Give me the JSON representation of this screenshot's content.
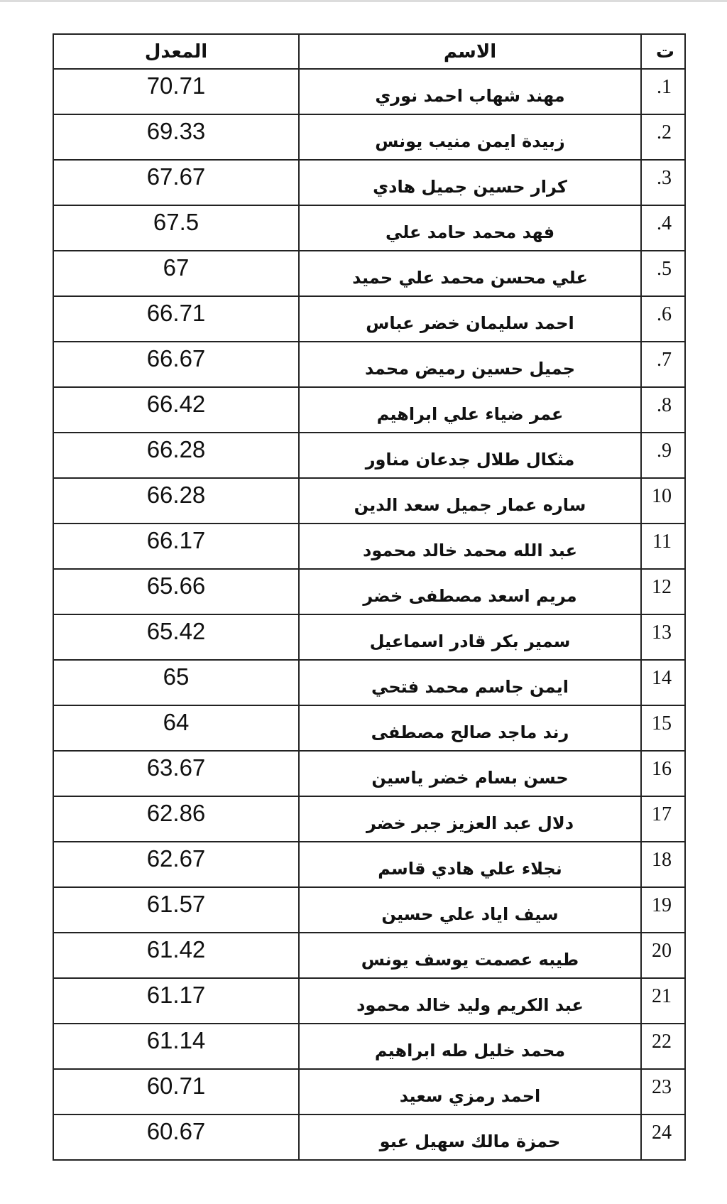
{
  "table": {
    "headers": {
      "score": "المعدل",
      "name": "الاسم",
      "index": "ت"
    },
    "rows": [
      {
        "index": "1.",
        "name": "مهند شهاب احمد نوري",
        "score": "70.71"
      },
      {
        "index": "2.",
        "name": "زبيدة ايمن منيب يونس",
        "score": "69.33"
      },
      {
        "index": "3.",
        "name": "كرار حسين جميل هادي",
        "score": "67.67"
      },
      {
        "index": "4.",
        "name": "فهد محمد حامد علي",
        "score": "67.5"
      },
      {
        "index": "5.",
        "name": "علي محسن محمد علي حميد",
        "score": "67"
      },
      {
        "index": "6.",
        "name": "احمد سليمان خضر عباس",
        "score": "66.71"
      },
      {
        "index": "7.",
        "name": "جميل حسين رميض محمد",
        "score": "66.67"
      },
      {
        "index": "8.",
        "name": "عمر ضياء علي ابراهيم",
        "score": "66.42"
      },
      {
        "index": "9.",
        "name": "مثكال طلال جدعان مناور",
        "score": "66.28"
      },
      {
        "index": "10",
        "name": "ساره عمار جميل سعد الدين",
        "score": "66.28"
      },
      {
        "index": "11",
        "name": "عبد الله محمد خالد محمود",
        "score": "66.17"
      },
      {
        "index": "12",
        "name": "مريم اسعد مصطفى خضر",
        "score": "65.66"
      },
      {
        "index": "13",
        "name": "سمير بكر قادر اسماعيل",
        "score": "65.42"
      },
      {
        "index": "14",
        "name": "ايمن جاسم محمد فتحي",
        "score": "65"
      },
      {
        "index": "15",
        "name": "رند ماجد صالح مصطفى",
        "score": "64"
      },
      {
        "index": "16",
        "name": "حسن بسام خضر ياسين",
        "score": "63.67"
      },
      {
        "index": "17",
        "name": "دلال عبد العزيز جبر خضر",
        "score": "62.86"
      },
      {
        "index": "18",
        "name": "نجلاء علي هادي قاسم",
        "score": "62.67"
      },
      {
        "index": "19",
        "name": "سيف اياد علي حسين",
        "score": "61.57"
      },
      {
        "index": "20",
        "name": "طيبه عصمت يوسف يونس",
        "score": "61.42"
      },
      {
        "index": "21",
        "name": "عبد الكريم وليد خالد محمود",
        "score": "61.17"
      },
      {
        "index": "22",
        "name": "محمد خليل طه ابراهيم",
        "score": "61.14"
      },
      {
        "index": "23",
        "name": "احمد رمزي سعيد",
        "score": "60.71"
      },
      {
        "index": "24",
        "name": "حمزة مالك سهيل عبو",
        "score": "60.67"
      }
    ]
  }
}
